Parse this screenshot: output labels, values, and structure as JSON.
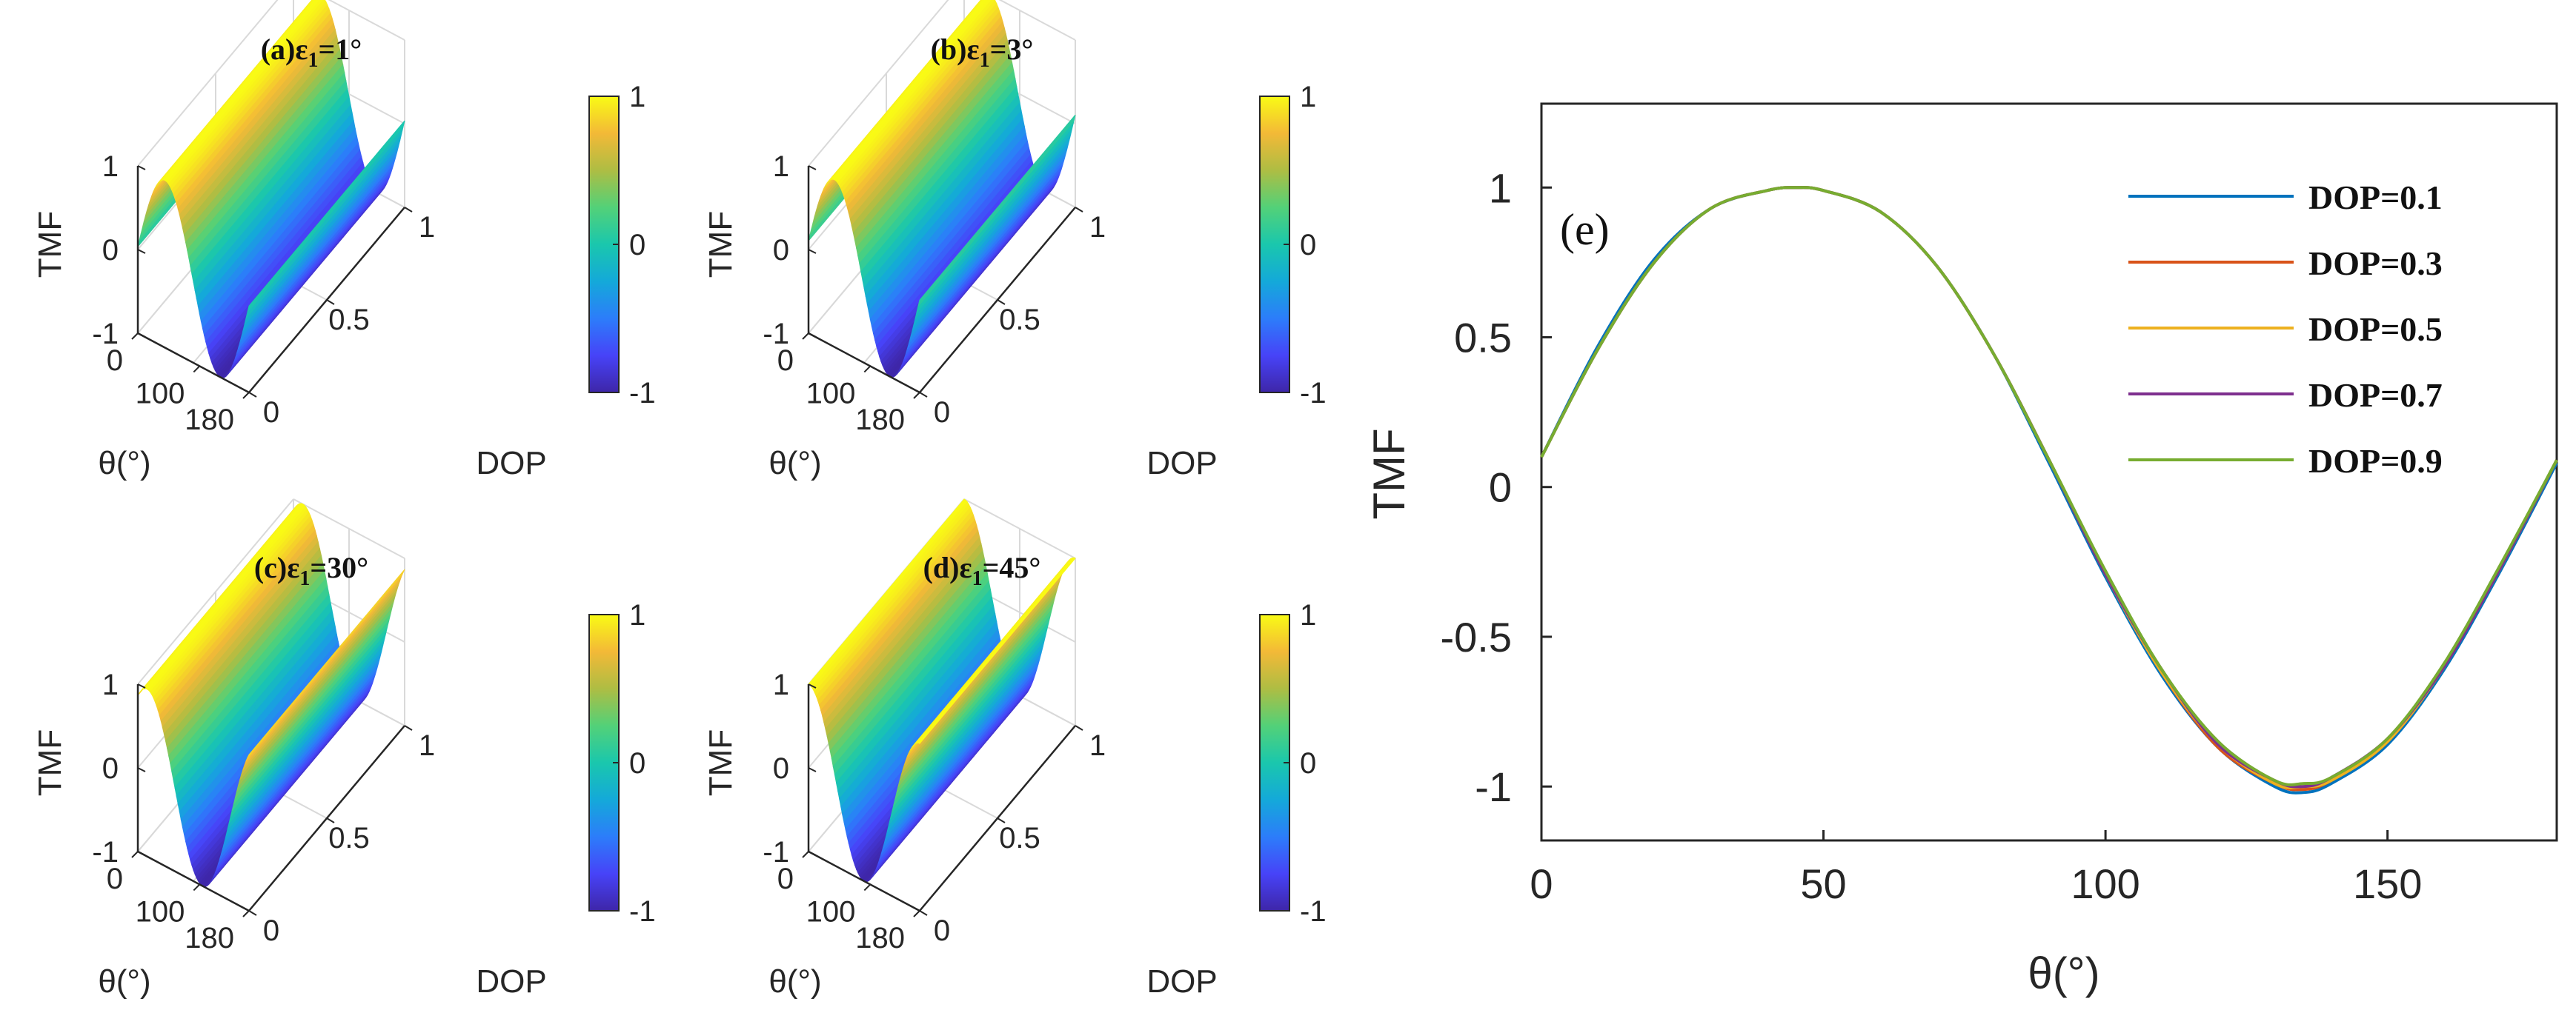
{
  "colors": {
    "parula": [
      "#3e26a8",
      "#4743f8",
      "#2c7dfa",
      "#14a9d9",
      "#1ac7ad",
      "#53d178",
      "#aebd43",
      "#f3b937",
      "#f9fb15"
    ],
    "line_dop_01": "#0072bd",
    "line_dop_03": "#d95319",
    "line_dop_05": "#edb120",
    "line_dop_07": "#7e2f8e",
    "line_dop_09": "#77ac30",
    "axis": "#262626",
    "grid": "#d9d9d9"
  },
  "chart_data": [
    {
      "type": "surface",
      "id": "a",
      "title_prefix": "(a)ε",
      "title_sub": "1",
      "title_suffix": "=1°",
      "epsilon_deg": 1,
      "zlabel": "TMF",
      "xlabel": "θ(°)",
      "ylabel": "DOP",
      "x_ticks": [
        "0",
        "100",
        "180"
      ],
      "y_ticks": [
        "0",
        "0.5",
        "1"
      ],
      "z_ticks": [
        "1",
        "0",
        "-1"
      ],
      "colorbar_ticks": [
        "1",
        "0",
        "-1"
      ],
      "xlim": [
        0,
        180
      ],
      "ylim": [
        0,
        1
      ],
      "zlim": [
        -1,
        1
      ]
    },
    {
      "type": "surface",
      "id": "b",
      "title_prefix": "(b)ε",
      "title_sub": "1",
      "title_suffix": "=3°",
      "epsilon_deg": 3,
      "zlabel": "TMF",
      "xlabel": "θ(°)",
      "ylabel": "DOP",
      "x_ticks": [
        "0",
        "100",
        "180"
      ],
      "y_ticks": [
        "0",
        "0.5",
        "1"
      ],
      "z_ticks": [
        "1",
        "0",
        "-1"
      ],
      "colorbar_ticks": [
        "1",
        "0",
        "-1"
      ],
      "xlim": [
        0,
        180
      ],
      "ylim": [
        0,
        1
      ],
      "zlim": [
        -1,
        1
      ]
    },
    {
      "type": "surface",
      "id": "c",
      "title_prefix": "(c)ε",
      "title_sub": "1",
      "title_suffix": "=30°",
      "epsilon_deg": 30,
      "zlabel": "TMF",
      "xlabel": "θ(°)",
      "ylabel": "DOP",
      "x_ticks": [
        "0",
        "100",
        "180"
      ],
      "y_ticks": [
        "0",
        "0.5",
        "1"
      ],
      "z_ticks": [
        "1",
        "0",
        "-1"
      ],
      "colorbar_ticks": [
        "1",
        "0",
        "-1"
      ],
      "xlim": [
        0,
        180
      ],
      "ylim": [
        0,
        1
      ],
      "zlim": [
        -1,
        1
      ]
    },
    {
      "type": "surface",
      "id": "d",
      "title_prefix": "(d)ε",
      "title_sub": "1",
      "title_suffix": "=45°",
      "epsilon_deg": 45,
      "zlabel": "TMF",
      "xlabel": "θ(°)",
      "ylabel": "DOP",
      "x_ticks": [
        "0",
        "100",
        "180"
      ],
      "y_ticks": [
        "0",
        "0.5",
        "1"
      ],
      "z_ticks": [
        "1",
        "0",
        "-1"
      ],
      "colorbar_ticks": [
        "1",
        "0",
        "-1"
      ],
      "xlim": [
        0,
        180
      ],
      "ylim": [
        0,
        1
      ],
      "zlim": [
        -1,
        1
      ]
    },
    {
      "type": "line",
      "id": "e",
      "panel_label": "(e)",
      "xlabel": "θ(°)",
      "ylabel": "TMF",
      "xlim": [
        0,
        180
      ],
      "ylim": [
        -1.18,
        1.28
      ],
      "x_ticks": [
        0,
        50,
        100,
        150
      ],
      "x_tick_labels": [
        "0",
        "50",
        "100",
        "150"
      ],
      "y_ticks": [
        1,
        0.5,
        0,
        -0.5,
        -1
      ],
      "y_tick_labels": [
        "1",
        "0.5",
        "0",
        "-0.5",
        "-1"
      ],
      "legend_position": "top-right",
      "x": [
        0,
        10,
        20,
        30,
        40,
        45,
        50,
        60,
        70,
        80,
        90,
        100,
        110,
        120,
        130,
        135,
        140,
        150,
        160,
        170,
        180
      ],
      "series": [
        {
          "name": "DOP=0.1",
          "values": [
            0.1,
            0.47,
            0.76,
            0.93,
            0.99,
            1.0,
            0.99,
            0.92,
            0.74,
            0.45,
            0.08,
            -0.3,
            -0.63,
            -0.87,
            -1.0,
            -1.02,
            -0.99,
            -0.86,
            -0.61,
            -0.28,
            0.08
          ]
        },
        {
          "name": "DOP=0.3",
          "values": [
            0.1,
            0.46,
            0.75,
            0.93,
            0.99,
            1.0,
            0.99,
            0.92,
            0.74,
            0.45,
            0.09,
            -0.29,
            -0.62,
            -0.87,
            -0.99,
            -1.01,
            -0.98,
            -0.85,
            -0.6,
            -0.27,
            0.09
          ]
        },
        {
          "name": "DOP=0.5",
          "values": [
            0.1,
            0.46,
            0.75,
            0.93,
            0.99,
            1.0,
            0.99,
            0.92,
            0.74,
            0.45,
            0.09,
            -0.29,
            -0.62,
            -0.86,
            -0.99,
            -1.0,
            -0.98,
            -0.85,
            -0.6,
            -0.27,
            0.09
          ]
        },
        {
          "name": "DOP=0.7",
          "values": [
            0.1,
            0.46,
            0.75,
            0.93,
            0.99,
            1.0,
            0.99,
            0.92,
            0.74,
            0.45,
            0.09,
            -0.29,
            -0.61,
            -0.86,
            -0.98,
            -1.0,
            -0.97,
            -0.84,
            -0.6,
            -0.27,
            0.09
          ]
        },
        {
          "name": "DOP=0.9",
          "values": [
            0.1,
            0.46,
            0.75,
            0.93,
            0.99,
            1.0,
            0.99,
            0.92,
            0.74,
            0.45,
            0.09,
            -0.28,
            -0.61,
            -0.85,
            -0.98,
            -0.99,
            -0.97,
            -0.84,
            -0.59,
            -0.26,
            0.09
          ]
        }
      ]
    }
  ]
}
